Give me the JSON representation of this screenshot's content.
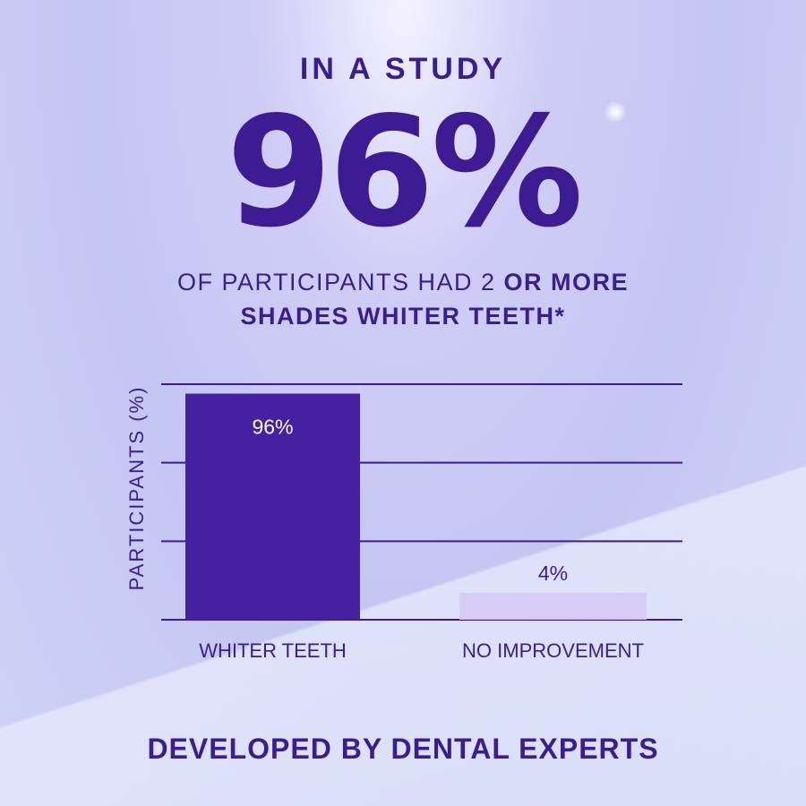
{
  "headline": {
    "eyebrow": "IN A STUDY",
    "stat": "96%",
    "subline_1_regular": "OF PARTICIPANTS HAD 2 ",
    "subline_1_bold": "OR MORE",
    "subline_2": "SHADES WHITER TEETH*"
  },
  "footer": "DEVELOPED BY DENTAL EXPERTS",
  "colors": {
    "primary": "#3d1c93",
    "bar_main": "#4520a0",
    "bar_secondary": "#d6c8f4"
  },
  "chart_data": {
    "type": "bar",
    "categories": [
      "WHITER TEETH",
      "NO IMPROVEMENT"
    ],
    "values": [
      96,
      4
    ],
    "data_labels": [
      "96%",
      "4%"
    ],
    "ylabel": "PARTICIPANTS (%)",
    "xlabel": "",
    "ylim": [
      0,
      100
    ],
    "grid": true
  }
}
